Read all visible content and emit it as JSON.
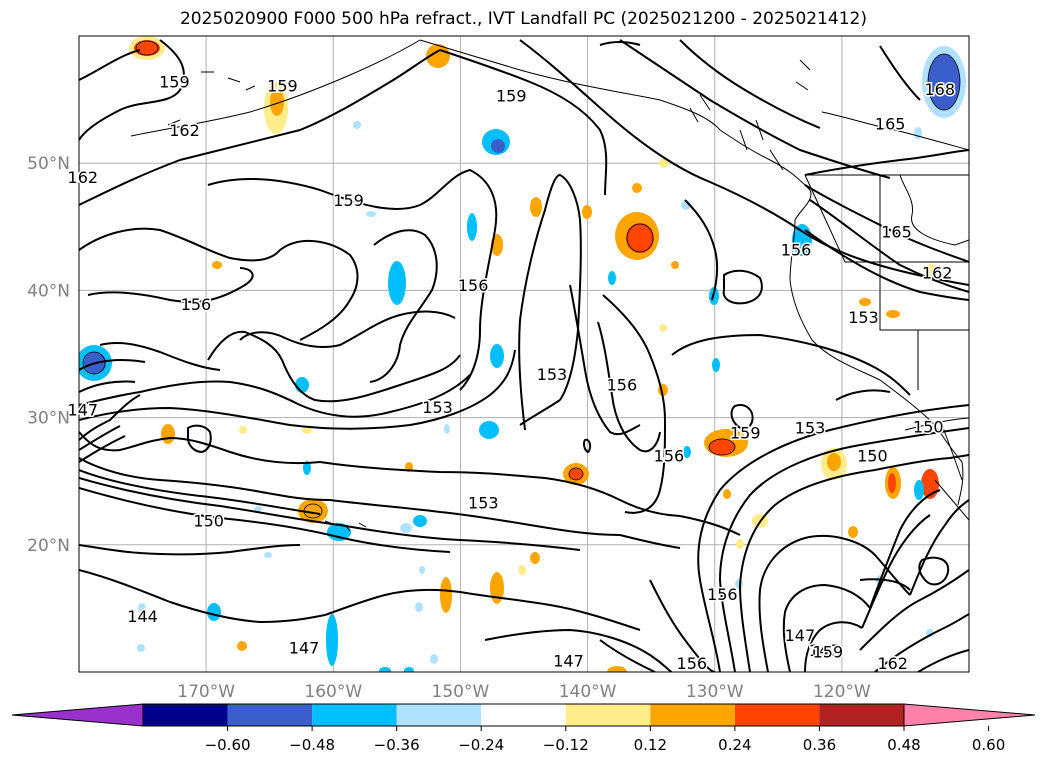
{
  "title": "2025020900 F000 500 hPa refract., IVT Landfall PC (2025021200 - 2025021412)",
  "axes": {
    "lat_labels": [
      "50°N",
      "40°N",
      "30°N",
      "20°N"
    ],
    "lat_values": [
      50,
      40,
      30,
      20
    ],
    "lon_labels": [
      "170°W",
      "160°W",
      "150°W",
      "140°W",
      "130°W",
      "120°W"
    ],
    "lon_values": [
      -170,
      -160,
      -150,
      -140,
      -130,
      -120
    ],
    "lon_range": [
      -180,
      -110
    ],
    "lat_range": [
      10,
      60
    ],
    "label_color": "#808080"
  },
  "contour_labels": [
    {
      "text": "159",
      "lon": -172.5,
      "lat": 56.3
    },
    {
      "text": "162",
      "lon": -179.7,
      "lat": 48.8
    },
    {
      "text": "162",
      "lon": -171.7,
      "lat": 52.5
    },
    {
      "text": "159",
      "lon": -164.0,
      "lat": 56.0
    },
    {
      "text": "159",
      "lon": -146.0,
      "lat": 55.2
    },
    {
      "text": "168",
      "lon": -112.3,
      "lat": 55.7
    },
    {
      "text": "165",
      "lon": -116.2,
      "lat": 53.0
    },
    {
      "text": "159",
      "lon": -158.8,
      "lat": 47.0
    },
    {
      "text": "156",
      "lon": -149.0,
      "lat": 40.3
    },
    {
      "text": "156",
      "lon": -170.8,
      "lat": 38.8
    },
    {
      "text": "156",
      "lon": -123.6,
      "lat": 43.1
    },
    {
      "text": "165",
      "lon": -115.7,
      "lat": 44.5
    },
    {
      "text": "162",
      "lon": -112.5,
      "lat": 41.3
    },
    {
      "text": "153",
      "lon": -118.3,
      "lat": 37.8
    },
    {
      "text": "147",
      "lon": -179.7,
      "lat": 30.5
    },
    {
      "text": "153",
      "lon": -151.8,
      "lat": 30.7
    },
    {
      "text": "153",
      "lon": -142.8,
      "lat": 33.3
    },
    {
      "text": "156",
      "lon": -137.3,
      "lat": 32.5
    },
    {
      "text": "156",
      "lon": -133.6,
      "lat": 26.9
    },
    {
      "text": "159",
      "lon": -127.6,
      "lat": 28.7
    },
    {
      "text": "153",
      "lon": -122.5,
      "lat": 29.1
    },
    {
      "text": "150",
      "lon": -113.2,
      "lat": 29.2
    },
    {
      "text": "150",
      "lon": -117.6,
      "lat": 26.9
    },
    {
      "text": "153",
      "lon": -148.2,
      "lat": 23.2
    },
    {
      "text": "150",
      "lon": -169.8,
      "lat": 21.8
    },
    {
      "text": "156",
      "lon": -129.4,
      "lat": 16.0
    },
    {
      "text": "144",
      "lon": -175.0,
      "lat": 14.3
    },
    {
      "text": "147",
      "lon": -162.3,
      "lat": 11.8
    },
    {
      "text": "147",
      "lon": -123.3,
      "lat": 12.8
    },
    {
      "text": "147",
      "lon": -121.4,
      "lat": 11.6
    },
    {
      "text": "147",
      "lon": -141.5,
      "lat": 10.8
    },
    {
      "text": "156",
      "lon": -131.8,
      "lat": 10.6
    },
    {
      "text": "159",
      "lon": -121.1,
      "lat": 11.5
    },
    {
      "text": "162",
      "lon": -116.0,
      "lat": 10.6
    }
  ],
  "colorbar": {
    "ticks": [
      "−0.60",
      "−0.48",
      "−0.36",
      "−0.24",
      "−0.12",
      "0.12",
      "0.24",
      "0.36",
      "0.48",
      "0.60"
    ],
    "colors": [
      "#9932cc",
      "#00008b",
      "#3a5fcd",
      "#00bfff",
      "#b0e2ff",
      "#ffffff",
      "#ffec8b",
      "#ffa500",
      "#ff4500",
      "#b22222",
      "#ff82ab"
    ]
  },
  "colors": {
    "contour": "#000000",
    "grid": "#b0b0b0",
    "coast": "#000000"
  }
}
